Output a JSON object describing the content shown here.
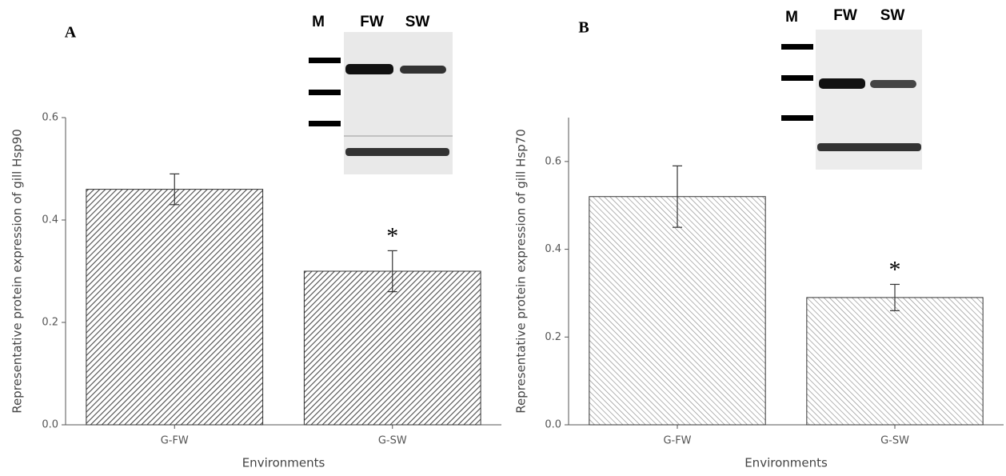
{
  "chart_data": [
    {
      "type": "bar",
      "panel_label": "A",
      "y_label": "Representative protein expression of gill Hsp90",
      "x_label": "Environments",
      "categories": [
        "G-FW",
        "G-SW"
      ],
      "values": [
        0.46,
        0.3
      ],
      "errors": [
        0.03,
        0.04
      ],
      "color": "#4a4a4a",
      "annotation": "*",
      "ylim": [
        0,
        0.6
      ],
      "yticks": [
        {
          "value": 0,
          "label": "0.0"
        },
        0.2,
        0.4,
        0.6
      ],
      "blot_labels": [
        "M",
        "FW",
        "SW"
      ]
    },
    {
      "type": "bar",
      "panel_label": "B",
      "y_label": "Representative protein expression of gill Hsp70",
      "x_label": "Environments",
      "categories": [
        "G-FW",
        "G-SW"
      ],
      "values": [
        0.52,
        0.29
      ],
      "errors": [
        0.07,
        0.03
      ],
      "color": "#8a8a8a",
      "annotation": "*",
      "ylim": [
        0,
        0.7
      ],
      "yticks": [
        {
          "value": 0,
          "label": "0.0"
        },
        0.2,
        0.4,
        0.6
      ],
      "blot_labels": [
        "M",
        "FW",
        "SW"
      ]
    }
  ]
}
